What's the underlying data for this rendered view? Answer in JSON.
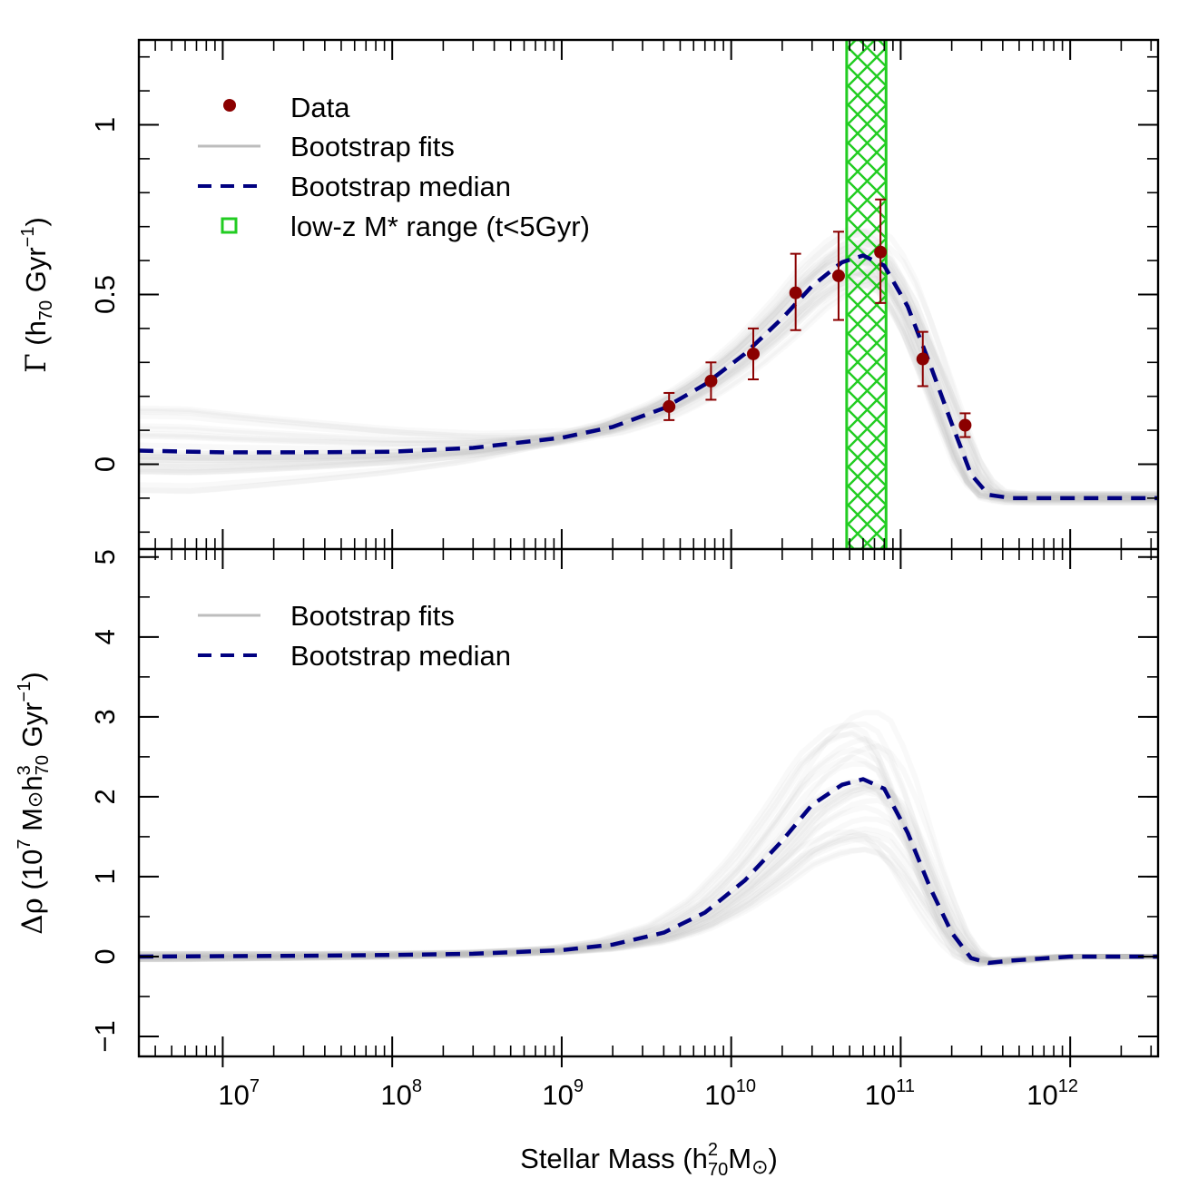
{
  "colors": {
    "data": "#8b0000",
    "fits": "#bdbdbd",
    "median": "#000080",
    "range": "#22cc22"
  },
  "chart_data": [
    {
      "type": "scatter",
      "panel": "top",
      "xlabel": "Stellar Mass (h",
      "xlabel_sup": "2",
      "xlabel_sub": "70",
      "xlabel_tail": "M",
      "xlabel_sun": "⊙",
      "xlabel_close": ")",
      "xscale": "log",
      "xlim": [
        3200000.0,
        3300000000000.0
      ],
      "ylabel_sym": "Γ",
      "ylabel": " (h",
      "ylabel_sub": "70",
      "ylabel_mid": " Gyr",
      "ylabel_sup": "−1",
      "ylabel_close": ")",
      "ylim": [
        -0.25,
        1.25
      ],
      "yticks": [
        0,
        0.5,
        1
      ],
      "ytick_labels": [
        "0",
        "0.5",
        "1"
      ],
      "legend": {
        "position": "top-left",
        "entries": [
          "Data",
          "Bootstrap fits",
          "Bootstrap median",
          "low-z M* range (t<5Gyr)"
        ]
      },
      "shaded_range": {
        "x_min": 48000000000.0,
        "x_max": 82000000000.0,
        "label": "low-z M* range (t<5Gyr)"
      },
      "series": [
        {
          "name": "Data",
          "x": [
            4300000000.0,
            7600000000.0,
            13500000000.0,
            24000000000.0,
            43000000000.0,
            76000000000.0,
            135000000000.0,
            240000000000.0
          ],
          "y": [
            0.17,
            0.245,
            0.325,
            0.505,
            0.555,
            0.625,
            0.31,
            0.115
          ],
          "yerr_low": [
            0.04,
            0.055,
            0.075,
            0.11,
            0.13,
            0.15,
            0.08,
            0.035
          ],
          "yerr_high": [
            0.04,
            0.055,
            0.075,
            0.115,
            0.13,
            0.155,
            0.08,
            0.035
          ]
        },
        {
          "name": "Bootstrap median",
          "x": [
            3200000.0,
            10000000.0,
            30000000.0,
            100000000.0,
            300000000.0,
            1000000000.0,
            2000000000.0,
            4000000000.0,
            7000000000.0,
            12000000000.0,
            20000000000.0,
            30000000000.0,
            45000000000.0,
            60000000000.0,
            80000000000.0,
            110000000000.0,
            150000000000.0,
            200000000000.0,
            260000000000.0,
            330000000000.0,
            450000000000.0,
            1000000000000.0,
            3300000000000.0
          ],
          "y": [
            0.04,
            0.035,
            0.035,
            0.037,
            0.048,
            0.078,
            0.11,
            0.165,
            0.235,
            0.325,
            0.43,
            0.525,
            0.595,
            0.615,
            0.585,
            0.465,
            0.29,
            0.12,
            -0.03,
            -0.09,
            -0.1,
            -0.1,
            -0.1
          ]
        }
      ],
      "bootstrap_fits": {
        "name": "Bootstrap fits",
        "count": 30
      }
    },
    {
      "type": "line",
      "panel": "bottom",
      "xscale": "log",
      "xlim": [
        3200000.0,
        3300000000000.0
      ],
      "ylabel_sym": "Δρ",
      "ylabel": " (10",
      "ylabel_sup1": "7",
      "ylabel_mid": " M",
      "ylabel_sun": "⊙",
      "ylabel_h": "h",
      "ylabel_sup2": "3",
      "ylabel_sub": "70",
      "ylabel_tail": " Gyr",
      "ylabel_sup3": "−1",
      "ylabel_close": ")",
      "ylim": [
        -1.25,
        5.1
      ],
      "yticks": [
        -1,
        0,
        1,
        2,
        3,
        4,
        5
      ],
      "ytick_labels": [
        "−1",
        "0",
        "1",
        "2",
        "3",
        "4",
        "5"
      ],
      "legend": {
        "position": "top-left",
        "entries": [
          "Bootstrap fits",
          "Bootstrap median"
        ]
      },
      "series": [
        {
          "name": "Bootstrap median",
          "x": [
            3200000.0,
            10000000.0,
            30000000.0,
            100000000.0,
            300000000.0,
            1000000000.0,
            2000000000.0,
            4000000000.0,
            7000000000.0,
            12000000000.0,
            20000000000.0,
            30000000000.0,
            45000000000.0,
            60000000000.0,
            80000000000.0,
            110000000000.0,
            150000000000.0,
            200000000000.0,
            260000000000.0,
            330000000000.0,
            450000000000.0,
            1000000000000.0,
            3300000000000.0
          ],
          "y": [
            0.0,
            0.005,
            0.01,
            0.02,
            0.035,
            0.08,
            0.15,
            0.3,
            0.55,
            0.95,
            1.45,
            1.9,
            2.15,
            2.22,
            2.1,
            1.55,
            0.85,
            0.3,
            -0.02,
            -0.08,
            -0.05,
            0.0,
            0.0
          ]
        }
      ],
      "bootstrap_fits": {
        "name": "Bootstrap fits",
        "count": 30
      }
    }
  ],
  "xaxis": {
    "tick_exponents": [
      "7",
      "8",
      "9",
      "10",
      "11",
      "12"
    ],
    "tick_values": [
      10000000.0,
      100000000.0,
      1000000000.0,
      10000000000.0,
      100000000000.0,
      1000000000000.0
    ],
    "base": "10"
  }
}
